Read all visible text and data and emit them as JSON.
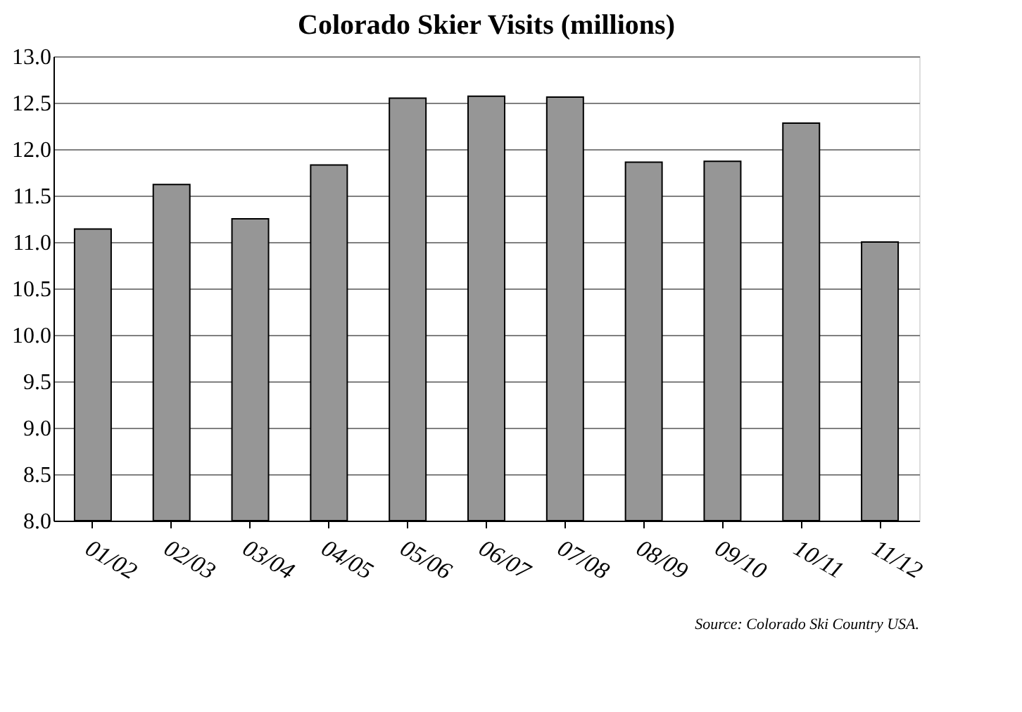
{
  "chart_data": {
    "type": "bar",
    "title": "Colorado Skier Visits (millions)",
    "categories": [
      "01/02",
      "02/03",
      "03/04",
      "04/05",
      "05/06",
      "06/07",
      "07/08",
      "08/09",
      "09/10",
      "10/11",
      "11/12"
    ],
    "values": [
      11.14,
      11.62,
      11.25,
      11.83,
      12.55,
      12.57,
      12.56,
      11.86,
      11.87,
      12.28,
      11.0
    ],
    "color": "#969696",
    "ylim": [
      8.0,
      13.0
    ],
    "yticks": [
      {
        "value": 8,
        "label": "8.0"
      },
      {
        "value": 8.5,
        "label": "8.5"
      },
      {
        "value": 9,
        "label": "9.0"
      },
      {
        "value": 9.5,
        "label": "9.5"
      },
      {
        "value": 10,
        "label": "10.0"
      },
      {
        "value": 10.5,
        "label": "10.5"
      },
      {
        "value": 11,
        "label": "11.0"
      },
      {
        "value": 11.5,
        "label": "11.5"
      },
      {
        "value": 12,
        "label": "12.0"
      },
      {
        "value": 12.5,
        "label": "12.5"
      },
      {
        "value": 13,
        "label": "13.0"
      }
    ],
    "grid": "y",
    "annotations": [
      "Source: Colorado Ski Country USA."
    ]
  }
}
